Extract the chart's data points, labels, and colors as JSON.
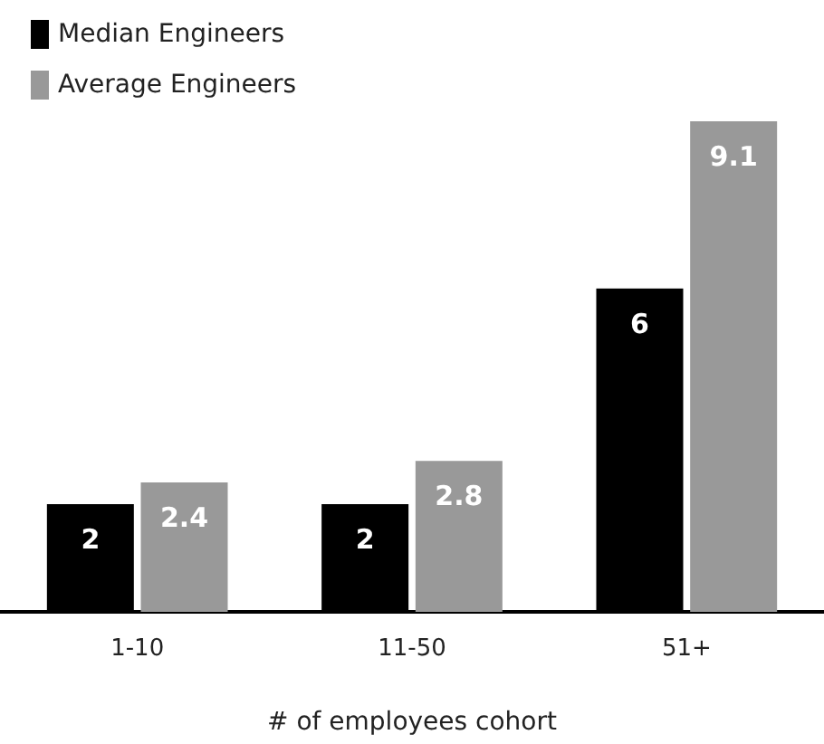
{
  "chart_data": {
    "type": "bar",
    "xlabel": "# of employees cohort",
    "categories": [
      "1-10",
      "11-50",
      "51+"
    ],
    "series": [
      {
        "name": "Median Engineers",
        "color": "#000000",
        "values": [
          2,
          2,
          6
        ]
      },
      {
        "name": "Average Engineers",
        "color": "#999999",
        "values": [
          2.4,
          2.8,
          9.1
        ]
      }
    ],
    "data_labels": true,
    "legend": "top left"
  }
}
